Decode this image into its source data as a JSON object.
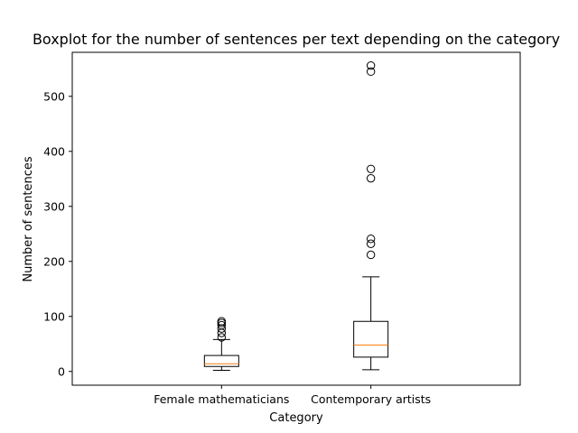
{
  "chart_data": {
    "type": "boxplot",
    "title": "Boxplot for the number of sentences per text depending on the category",
    "xlabel": "Category",
    "ylabel": "Number of sentences",
    "ylim": [
      -25,
      580
    ],
    "yticks": [
      0,
      100,
      200,
      300,
      400,
      500
    ],
    "grid": false,
    "categories": [
      "Female mathematicians",
      "Contemporary artists"
    ],
    "boxes": [
      {
        "category": "Female mathematicians",
        "whisker_low": 2,
        "q1": 9,
        "median": 14,
        "q3": 29,
        "whisker_high": 58,
        "outliers": [
          62,
          70,
          78,
          84,
          88,
          91
        ]
      },
      {
        "category": "Contemporary artists",
        "whisker_low": 3,
        "q1": 26,
        "median": 48,
        "q3": 91,
        "whisker_high": 172,
        "outliers": [
          212,
          232,
          241,
          351,
          368,
          545,
          556
        ]
      }
    ],
    "colors": {
      "box": "#000000",
      "median": "#ff7f0e",
      "outlier": "#000000",
      "background": "#ffffff"
    }
  }
}
